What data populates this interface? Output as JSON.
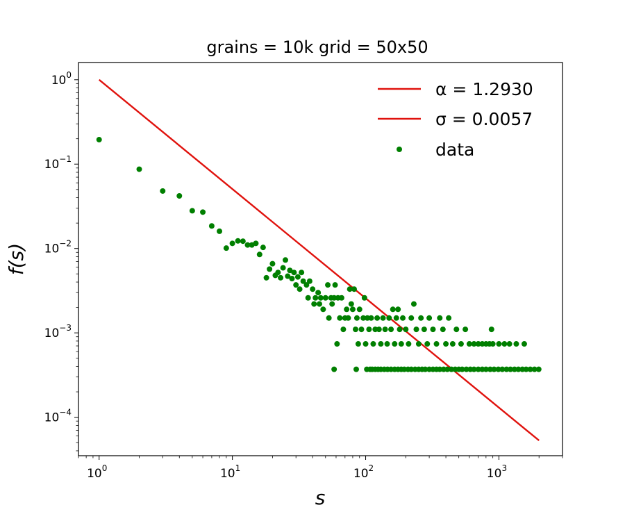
{
  "chart_data": {
    "type": "scatter",
    "title": "grains = 10k grid = 50x50",
    "xlabel": "s",
    "ylabel": "f(s)",
    "xscale": "log",
    "yscale": "log",
    "xlim": [
      0.7,
      3000
    ],
    "ylim": [
      3.5e-05,
      1.6
    ],
    "xticks": [
      {
        "base": "10",
        "exp": "0"
      },
      {
        "base": "10",
        "exp": "1"
      },
      {
        "base": "10",
        "exp": "2"
      },
      {
        "base": "10",
        "exp": "3"
      }
    ],
    "yticks": [
      {
        "base": "10",
        "exp": "0"
      },
      {
        "base": "10",
        "exp": "−1"
      },
      {
        "base": "10",
        "exp": "−2"
      },
      {
        "base": "10",
        "exp": "−3"
      },
      {
        "base": "10",
        "exp": "−4"
      }
    ],
    "grid": false,
    "legend_position": "top-right",
    "legend": [
      {
        "label": "α = 1.2930",
        "kind": "line"
      },
      {
        "label": "σ = 0.0057",
        "kind": "line"
      },
      {
        "label": "data",
        "kind": "marker"
      }
    ],
    "fit_line": {
      "name": "fit",
      "color": "#e0120d",
      "alpha": 1.293,
      "points": [
        [
          1,
          1.0
        ],
        [
          2000,
          5.3e-05
        ]
      ]
    },
    "data_series": {
      "name": "data",
      "color": "#007f00",
      "points": [
        [
          1,
          0.195
        ],
        [
          2,
          0.087
        ],
        [
          3,
          0.048
        ],
        [
          4,
          0.042
        ],
        [
          5,
          0.028
        ],
        [
          6,
          0.027
        ],
        [
          7,
          0.0185
        ],
        [
          8,
          0.016
        ],
        [
          9,
          0.0101
        ],
        [
          10,
          0.0115
        ],
        [
          11,
          0.0123
        ],
        [
          12,
          0.0122
        ],
        [
          13,
          0.011
        ],
        [
          14,
          0.011
        ],
        [
          15,
          0.0115
        ],
        [
          16,
          0.0085
        ],
        [
          17,
          0.0103
        ],
        [
          18,
          0.0045
        ],
        [
          19,
          0.0057
        ],
        [
          20,
          0.0066
        ],
        [
          21,
          0.0048
        ],
        [
          22,
          0.0052
        ],
        [
          23,
          0.0045
        ],
        [
          24,
          0.0059
        ],
        [
          25,
          0.0073
        ],
        [
          26,
          0.0047
        ],
        [
          27,
          0.0055
        ],
        [
          28,
          0.0044
        ],
        [
          29,
          0.0052
        ],
        [
          30,
          0.0037
        ],
        [
          31,
          0.0046
        ],
        [
          32,
          0.0033
        ],
        [
          33,
          0.0052
        ],
        [
          34,
          0.0041
        ],
        [
          36,
          0.0037
        ],
        [
          37,
          0.0026
        ],
        [
          38,
          0.0041
        ],
        [
          40,
          0.0033
        ],
        [
          41,
          0.0022
        ],
        [
          42,
          0.0026
        ],
        [
          44,
          0.003
        ],
        [
          45,
          0.0022
        ],
        [
          46,
          0.0026
        ],
        [
          48,
          0.0019
        ],
        [
          50,
          0.0026
        ],
        [
          52,
          0.0037
        ],
        [
          53,
          0.0015
        ],
        [
          55,
          0.0026
        ],
        [
          56,
          0.0022
        ],
        [
          58,
          0.0026
        ],
        [
          59,
          0.0037
        ],
        [
          61,
          0.00074
        ],
        [
          62,
          0.0026
        ],
        [
          64,
          0.0015
        ],
        [
          66,
          0.0026
        ],
        [
          68,
          0.0011
        ],
        [
          70,
          0.0015
        ],
        [
          72,
          0.0019
        ],
        [
          74,
          0.0015
        ],
        [
          76,
          0.0033
        ],
        [
          78,
          0.0022
        ],
        [
          80,
          0.0019
        ],
        [
          82,
          0.0033
        ],
        [
          84,
          0.0011
        ],
        [
          86,
          0.0015
        ],
        [
          88,
          0.00074
        ],
        [
          90,
          0.0019
        ],
        [
          93,
          0.0011
        ],
        [
          96,
          0.0015
        ],
        [
          98,
          0.0026
        ],
        [
          100,
          0.00074
        ],
        [
          103,
          0.0015
        ],
        [
          106,
          0.0011
        ],
        [
          110,
          0.0015
        ],
        [
          114,
          0.00074
        ],
        [
          118,
          0.0011
        ],
        [
          122,
          0.0015
        ],
        [
          126,
          0.0011
        ],
        [
          130,
          0.00074
        ],
        [
          135,
          0.0015
        ],
        [
          140,
          0.0011
        ],
        [
          145,
          0.00074
        ],
        [
          150,
          0.0015
        ],
        [
          155,
          0.0011
        ],
        [
          160,
          0.0019
        ],
        [
          165,
          0.00074
        ],
        [
          170,
          0.0015
        ],
        [
          175,
          0.0019
        ],
        [
          180,
          0.0011
        ],
        [
          185,
          0.00074
        ],
        [
          190,
          0.0015
        ],
        [
          200,
          0.0011
        ],
        [
          210,
          0.00074
        ],
        [
          220,
          0.0015
        ],
        [
          230,
          0.0022
        ],
        [
          240,
          0.0011
        ],
        [
          250,
          0.00074
        ],
        [
          260,
          0.0015
        ],
        [
          275,
          0.0011
        ],
        [
          290,
          0.00074
        ],
        [
          300,
          0.0015
        ],
        [
          320,
          0.0011
        ],
        [
          340,
          0.00074
        ],
        [
          360,
          0.0015
        ],
        [
          380,
          0.0011
        ],
        [
          400,
          0.00074
        ],
        [
          420,
          0.0015
        ],
        [
          450,
          0.00074
        ],
        [
          480,
          0.0011
        ],
        [
          520,
          0.00074
        ],
        [
          560,
          0.0011
        ],
        [
          600,
          0.00074
        ],
        [
          650,
          0.00074
        ],
        [
          700,
          0.00074
        ],
        [
          750,
          0.00074
        ],
        [
          800,
          0.00074
        ],
        [
          850,
          0.00074
        ],
        [
          880,
          0.0011
        ],
        [
          900,
          0.00074
        ],
        [
          1000,
          0.00074
        ],
        [
          1100,
          0.00074
        ],
        [
          1200,
          0.00074
        ],
        [
          1350,
          0.00074
        ],
        [
          1550,
          0.00074
        ],
        [
          58,
          0.00037
        ],
        [
          85,
          0.00037
        ],
        [
          102,
          0.00037
        ],
        [
          108,
          0.00037
        ],
        [
          112,
          0.00037
        ],
        [
          118,
          0.00037
        ],
        [
          124,
          0.00037
        ],
        [
          130,
          0.00037
        ],
        [
          138,
          0.00037
        ],
        [
          146,
          0.00037
        ],
        [
          155,
          0.00037
        ],
        [
          165,
          0.00037
        ],
        [
          175,
          0.00037
        ],
        [
          185,
          0.00037
        ],
        [
          195,
          0.00037
        ],
        [
          208,
          0.00037
        ],
        [
          220,
          0.00037
        ],
        [
          235,
          0.00037
        ],
        [
          250,
          0.00037
        ],
        [
          265,
          0.00037
        ],
        [
          280,
          0.00037
        ],
        [
          300,
          0.00037
        ],
        [
          320,
          0.00037
        ],
        [
          340,
          0.00037
        ],
        [
          360,
          0.00037
        ],
        [
          385,
          0.00037
        ],
        [
          410,
          0.00037
        ],
        [
          440,
          0.00037
        ],
        [
          470,
          0.00037
        ],
        [
          500,
          0.00037
        ],
        [
          530,
          0.00037
        ],
        [
          570,
          0.00037
        ],
        [
          610,
          0.00037
        ],
        [
          650,
          0.00037
        ],
        [
          700,
          0.00037
        ],
        [
          750,
          0.00037
        ],
        [
          800,
          0.00037
        ],
        [
          860,
          0.00037
        ],
        [
          920,
          0.00037
        ],
        [
          990,
          0.00037
        ],
        [
          1060,
          0.00037
        ],
        [
          1140,
          0.00037
        ],
        [
          1220,
          0.00037
        ],
        [
          1310,
          0.00037
        ],
        [
          1400,
          0.00037
        ],
        [
          1500,
          0.00037
        ],
        [
          1600,
          0.00037
        ],
        [
          1720,
          0.00037
        ],
        [
          1850,
          0.00037
        ],
        [
          1990,
          0.00037
        ]
      ]
    }
  }
}
